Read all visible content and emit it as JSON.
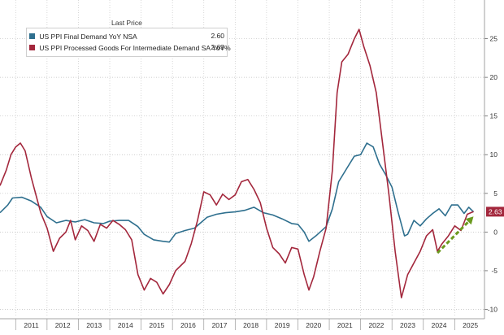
{
  "chart_data": {
    "type": "line",
    "legend_title": "Last Price",
    "legend_placement": "top-left",
    "grid": true,
    "ylim": [
      -11,
      30
    ],
    "y_ticks": [
      -10,
      -5,
      0,
      5,
      10,
      15,
      20,
      25
    ],
    "y_tick_labels": [
      "-10",
      "-5",
      "0",
      "5",
      "10",
      "15",
      "20",
      "25"
    ],
    "x_tick_labels": [
      "2011",
      "2012",
      "2013",
      "2014",
      "2015",
      "2016",
      "2017",
      "2018",
      "2019",
      "2020",
      "2021",
      "2022",
      "2023",
      "2024",
      "2025"
    ],
    "series": [
      {
        "name": "US PPI Final Demand YoY NSA",
        "last_label": "2.60",
        "color": "#2e6f8e",
        "points": [
          [
            2010.5,
            2.5
          ],
          [
            2010.75,
            3.5
          ],
          [
            2010.9,
            4.4
          ],
          [
            2011.2,
            4.5
          ],
          [
            2011.5,
            4.0
          ],
          [
            2011.8,
            3.2
          ],
          [
            2012.0,
            2.0
          ],
          [
            2012.3,
            1.2
          ],
          [
            2012.6,
            1.5
          ],
          [
            2012.9,
            1.3
          ],
          [
            2013.2,
            1.6
          ],
          [
            2013.5,
            1.2
          ],
          [
            2013.8,
            1.1
          ],
          [
            2014.0,
            1.4
          ],
          [
            2014.3,
            1.5
          ],
          [
            2014.6,
            1.5
          ],
          [
            2014.9,
            0.7
          ],
          [
            2015.1,
            -0.3
          ],
          [
            2015.4,
            -1.0
          ],
          [
            2015.7,
            -1.2
          ],
          [
            2015.9,
            -1.3
          ],
          [
            2016.1,
            -0.2
          ],
          [
            2016.4,
            0.2
          ],
          [
            2016.7,
            0.5
          ],
          [
            2016.9,
            1.2
          ],
          [
            2017.1,
            1.9
          ],
          [
            2017.4,
            2.3
          ],
          [
            2017.7,
            2.5
          ],
          [
            2018.0,
            2.6
          ],
          [
            2018.3,
            2.8
          ],
          [
            2018.6,
            3.2
          ],
          [
            2018.9,
            2.5
          ],
          [
            2019.2,
            2.2
          ],
          [
            2019.5,
            1.7
          ],
          [
            2019.8,
            1.1
          ],
          [
            2020.0,
            1.0
          ],
          [
            2020.2,
            0.0
          ],
          [
            2020.35,
            -1.2
          ],
          [
            2020.6,
            -0.4
          ],
          [
            2020.9,
            0.7
          ],
          [
            2021.1,
            3.0
          ],
          [
            2021.3,
            6.5
          ],
          [
            2021.6,
            8.5
          ],
          [
            2021.8,
            9.8
          ],
          [
            2022.0,
            10.0
          ],
          [
            2022.2,
            11.5
          ],
          [
            2022.4,
            11.0
          ],
          [
            2022.6,
            8.8
          ],
          [
            2022.8,
            7.4
          ],
          [
            2023.0,
            5.8
          ],
          [
            2023.2,
            2.5
          ],
          [
            2023.4,
            -0.5
          ],
          [
            2023.5,
            -0.3
          ],
          [
            2023.7,
            1.5
          ],
          [
            2023.9,
            0.8
          ],
          [
            2024.1,
            1.7
          ],
          [
            2024.3,
            2.4
          ],
          [
            2024.5,
            3.0
          ],
          [
            2024.7,
            2.1
          ],
          [
            2024.9,
            3.5
          ],
          [
            2025.1,
            3.5
          ],
          [
            2025.3,
            2.4
          ],
          [
            2025.45,
            3.2
          ],
          [
            2025.6,
            2.6
          ]
        ]
      },
      {
        "name": "US PPI Processed Goods For Intermediate Demand SA YoY%",
        "last_label": "2.63",
        "color": "#a3273c",
        "points": [
          [
            2010.5,
            6.0
          ],
          [
            2010.7,
            8.0
          ],
          [
            2010.85,
            10.0
          ],
          [
            2011.0,
            11.0
          ],
          [
            2011.15,
            11.5
          ],
          [
            2011.3,
            10.5
          ],
          [
            2011.5,
            7.0
          ],
          [
            2011.8,
            2.5
          ],
          [
            2012.0,
            0.5
          ],
          [
            2012.2,
            -2.5
          ],
          [
            2012.4,
            -0.8
          ],
          [
            2012.6,
            0.0
          ],
          [
            2012.75,
            1.5
          ],
          [
            2012.9,
            -1.0
          ],
          [
            2013.1,
            0.8
          ],
          [
            2013.3,
            0.2
          ],
          [
            2013.5,
            -1.2
          ],
          [
            2013.7,
            1.0
          ],
          [
            2013.9,
            0.5
          ],
          [
            2014.1,
            1.5
          ],
          [
            2014.3,
            1.0
          ],
          [
            2014.5,
            0.3
          ],
          [
            2014.7,
            -1.0
          ],
          [
            2014.9,
            -5.5
          ],
          [
            2015.1,
            -7.5
          ],
          [
            2015.3,
            -6.0
          ],
          [
            2015.5,
            -6.5
          ],
          [
            2015.7,
            -8.0
          ],
          [
            2015.9,
            -6.8
          ],
          [
            2016.1,
            -5.0
          ],
          [
            2016.4,
            -3.8
          ],
          [
            2016.6,
            -1.5
          ],
          [
            2016.8,
            1.5
          ],
          [
            2017.0,
            5.2
          ],
          [
            2017.2,
            4.8
          ],
          [
            2017.4,
            3.5
          ],
          [
            2017.6,
            4.9
          ],
          [
            2017.8,
            4.2
          ],
          [
            2018.0,
            4.8
          ],
          [
            2018.2,
            6.5
          ],
          [
            2018.4,
            6.8
          ],
          [
            2018.6,
            5.5
          ],
          [
            2018.8,
            3.8
          ],
          [
            2019.0,
            0.5
          ],
          [
            2019.2,
            -2.0
          ],
          [
            2019.4,
            -2.8
          ],
          [
            2019.6,
            -4.0
          ],
          [
            2019.8,
            -2.0
          ],
          [
            2020.0,
            -2.2
          ],
          [
            2020.2,
            -5.5
          ],
          [
            2020.35,
            -7.5
          ],
          [
            2020.5,
            -5.8
          ],
          [
            2020.7,
            -2.5
          ],
          [
            2020.9,
            0.5
          ],
          [
            2021.1,
            8.0
          ],
          [
            2021.25,
            18.0
          ],
          [
            2021.4,
            22.0
          ],
          [
            2021.6,
            23.0
          ],
          [
            2021.8,
            25.0
          ],
          [
            2021.95,
            26.2
          ],
          [
            2022.1,
            24.0
          ],
          [
            2022.3,
            21.5
          ],
          [
            2022.5,
            18.0
          ],
          [
            2022.7,
            11.5
          ],
          [
            2022.9,
            5.0
          ],
          [
            2023.1,
            -2.5
          ],
          [
            2023.3,
            -8.5
          ],
          [
            2023.5,
            -5.5
          ],
          [
            2023.7,
            -4.0
          ],
          [
            2023.9,
            -2.5
          ],
          [
            2024.1,
            -0.5
          ],
          [
            2024.3,
            0.3
          ],
          [
            2024.45,
            -2.5
          ],
          [
            2024.6,
            -1.5
          ],
          [
            2024.8,
            -0.5
          ],
          [
            2025.0,
            0.8
          ],
          [
            2025.2,
            0.2
          ],
          [
            2025.4,
            2.3
          ],
          [
            2025.6,
            2.63
          ]
        ]
      }
    ],
    "last_value_tag": "2.63",
    "annotation": {
      "type": "dashed-arrow",
      "color": "#6b9a1e",
      "from": [
        2024.45,
        -2.7
      ],
      "to": [
        2025.6,
        2.0
      ]
    }
  }
}
